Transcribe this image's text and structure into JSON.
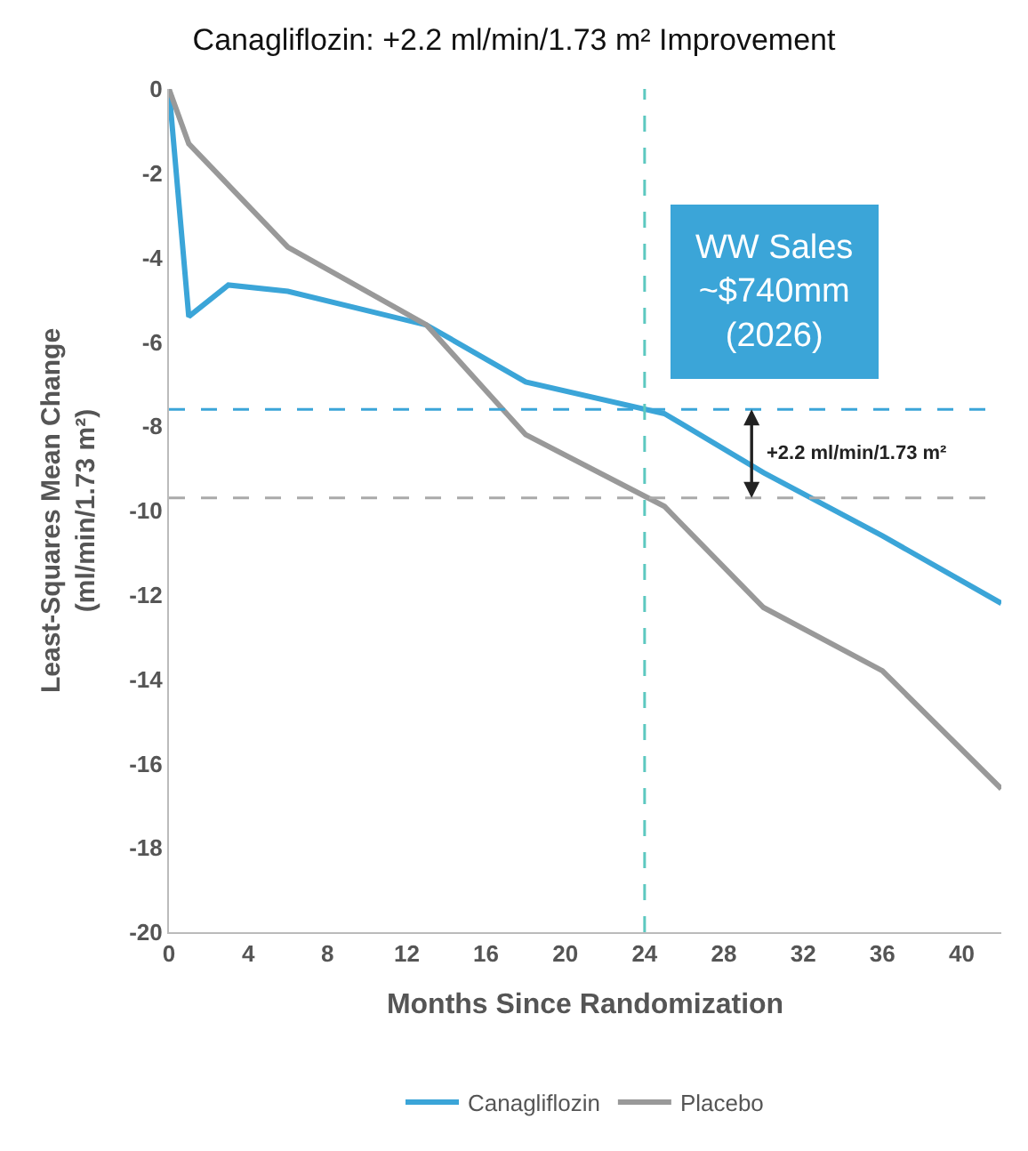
{
  "chart_data": {
    "type": "line",
    "title": "Canagliflozin: +2.2 ml/min/1.73 m² Improvement",
    "xlabel": "Months Since Randomization",
    "ylabel": "Least-Squares Mean Change\n(ml/min/1.73 m²)",
    "series": [
      {
        "name": "Canagliflozin",
        "color": "#3ba5d8",
        "x": [
          0,
          1,
          3,
          6,
          13,
          18,
          25,
          30,
          36,
          42
        ],
        "values": [
          0,
          -5.4,
          -4.65,
          -4.8,
          -5.6,
          -6.95,
          -7.7,
          -9.1,
          -10.6,
          -12.2
        ]
      },
      {
        "name": "Placebo",
        "color": "#999999",
        "x": [
          0,
          1,
          6,
          13,
          18,
          25,
          30,
          36,
          42
        ],
        "values": [
          0,
          -1.3,
          -3.75,
          -5.6,
          -8.2,
          -9.9,
          -12.3,
          -13.8,
          -16.6
        ]
      }
    ],
    "xlim": [
      0,
      42
    ],
    "xticks": [
      0,
      4,
      8,
      12,
      16,
      20,
      24,
      28,
      32,
      36,
      40
    ],
    "ylim": [
      -20,
      0
    ],
    "yticks": [
      -20,
      -18,
      -16,
      -14,
      -12,
      -10,
      -8,
      -6,
      -4,
      -2,
      0
    ],
    "ref_lines": [
      {
        "axis": "y",
        "value": -7.6,
        "color": "#3ba5d8",
        "line_style": "dashed"
      },
      {
        "axis": "y",
        "value": -9.7,
        "color": "#aaaaaa",
        "line_style": "dashed"
      },
      {
        "axis": "x",
        "value": 24,
        "color": "#5cc8c0",
        "line_style": "dashed"
      }
    ],
    "annotations": [
      "+2.2 ml/min/1.73 m²",
      "WW Sales\n~$740mm\n(2026)"
    ],
    "legend": "bottom",
    "grid": false,
    "marker": "none",
    "line_style": "solid"
  }
}
